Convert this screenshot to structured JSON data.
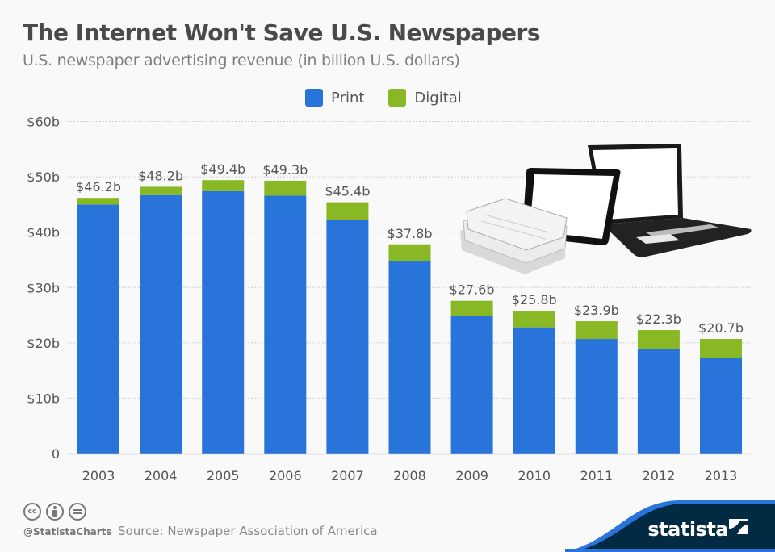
{
  "header": {
    "title": "The Internet Won't Save U.S. Newspapers",
    "subtitle": "U.S. newspaper advertising revenue (in billion U.S. dollars)"
  },
  "legend": [
    {
      "label": "Print",
      "color": "#2874db"
    },
    {
      "label": "Digital",
      "color": "#88b824"
    }
  ],
  "illustration": {
    "icon": "newspapers-tablet-laptop-illustration"
  },
  "footer": {
    "license_icons": [
      "cc-icon",
      "by-attribution-icon",
      "no-derivatives-icon"
    ],
    "license_cc_text": "cc",
    "handle": "@StatistaCharts",
    "source": "Source: Newspaper Association of America",
    "brand": "statista",
    "brand_color": "#022a42",
    "accent_color": "#2874db"
  },
  "chart_data": {
    "type": "bar",
    "stacked": true,
    "title": "The Internet Won't Save U.S. Newspapers",
    "subtitle": "U.S. newspaper advertising revenue (in billion U.S. dollars)",
    "xlabel": "",
    "ylabel": "",
    "categories": [
      "2003",
      "2004",
      "2005",
      "2006",
      "2007",
      "2008",
      "2009",
      "2010",
      "2011",
      "2012",
      "2013"
    ],
    "series": [
      {
        "name": "Print",
        "color": "#2874db",
        "values": [
          45.0,
          46.7,
          47.4,
          46.6,
          42.2,
          34.7,
          24.8,
          22.8,
          20.7,
          18.9,
          17.3
        ]
      },
      {
        "name": "Digital",
        "color": "#88b824",
        "values": [
          1.2,
          1.5,
          2.0,
          2.7,
          3.2,
          3.1,
          2.8,
          3.0,
          3.2,
          3.4,
          3.4
        ]
      }
    ],
    "totals": [
      46.2,
      48.2,
      49.4,
      49.3,
      45.4,
      37.8,
      27.6,
      25.8,
      23.9,
      22.3,
      20.7
    ],
    "data_labels": [
      "$46.2b",
      "$48.2b",
      "$49.4b",
      "$49.3b",
      "$45.4b",
      "$37.8b",
      "$27.6b",
      "$25.8b",
      "$23.9b",
      "$22.3b",
      "$20.7b"
    ],
    "ylim": [
      0,
      60
    ],
    "yticks": [
      0,
      10,
      20,
      30,
      40,
      50,
      60
    ],
    "ytick_labels": [
      "0",
      "$10b",
      "$20b",
      "$30b",
      "$40b",
      "$50b",
      "$60b"
    ],
    "grid": true,
    "legend_position": "top-center"
  }
}
